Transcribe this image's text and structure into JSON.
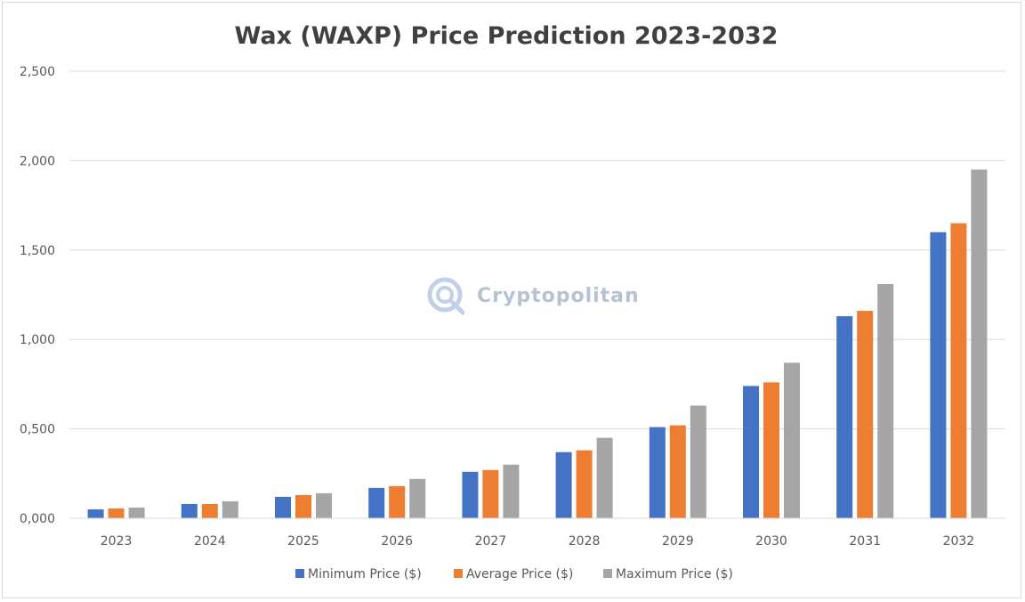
{
  "chart_data": {
    "type": "bar",
    "title": "Wax (WAXP) Price Prediction 2023-2032",
    "xlabel": "",
    "ylabel": "",
    "categories": [
      "2023",
      "2024",
      "2025",
      "2026",
      "2027",
      "2028",
      "2029",
      "2030",
      "2031",
      "2032"
    ],
    "ylim": [
      0,
      2.5
    ],
    "yticks": [
      "0,000",
      "0,500",
      "1,000",
      "1,500",
      "2,000",
      "2,500"
    ],
    "grid": true,
    "legend_position": "bottom",
    "series": [
      {
        "name": "Minimum Price ($)",
        "color": "#4472c4",
        "values": [
          0.05,
          0.08,
          0.12,
          0.17,
          0.26,
          0.37,
          0.51,
          0.74,
          1.13,
          1.6
        ]
      },
      {
        "name": "Average Price ($)",
        "color": "#ed7d31",
        "values": [
          0.055,
          0.08,
          0.13,
          0.18,
          0.27,
          0.38,
          0.52,
          0.76,
          1.16,
          1.65
        ]
      },
      {
        "name": "Maximum Price ($)",
        "color": "#a5a5a5",
        "values": [
          0.06,
          0.095,
          0.14,
          0.22,
          0.3,
          0.45,
          0.63,
          0.87,
          1.31,
          1.95
        ]
      }
    ]
  },
  "watermark": {
    "text": "Cryptopolitan",
    "icon": "cryptopolitan-logo-icon"
  }
}
